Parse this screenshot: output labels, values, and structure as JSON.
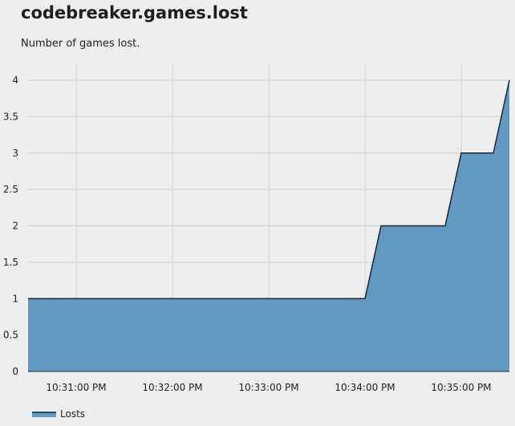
{
  "header": {
    "title": "codebreaker.games.lost",
    "description": "Number of games lost."
  },
  "colors": {
    "area_fill": "#6399c1",
    "area_line": "#102840",
    "grid": "#cfcfcf",
    "background": "#eeeeee"
  },
  "chart_data": {
    "type": "area",
    "title": "codebreaker.games.lost",
    "subtitle": "Number of games lost.",
    "xlabel": "",
    "ylabel": "",
    "ylim": [
      0,
      4
    ],
    "y_ticks": [
      "0",
      "0.5",
      "1",
      "1.5",
      "2",
      "2.5",
      "3",
      "3.5",
      "4"
    ],
    "x_ticks": [
      "10:31:00 PM",
      "10:32:00 PM",
      "10:33:00 PM",
      "10:34:00 PM",
      "10:35:00 PM"
    ],
    "grid": true,
    "legend": "bottom-left",
    "series": [
      {
        "name": "Losts",
        "x": [
          "10:30:30 PM",
          "10:34:00 PM",
          "10:34:10 PM",
          "10:34:50 PM",
          "10:35:00 PM",
          "10:35:20 PM",
          "10:35:30 PM"
        ],
        "y": [
          1,
          1,
          2,
          2,
          3,
          3,
          4
        ]
      }
    ]
  }
}
